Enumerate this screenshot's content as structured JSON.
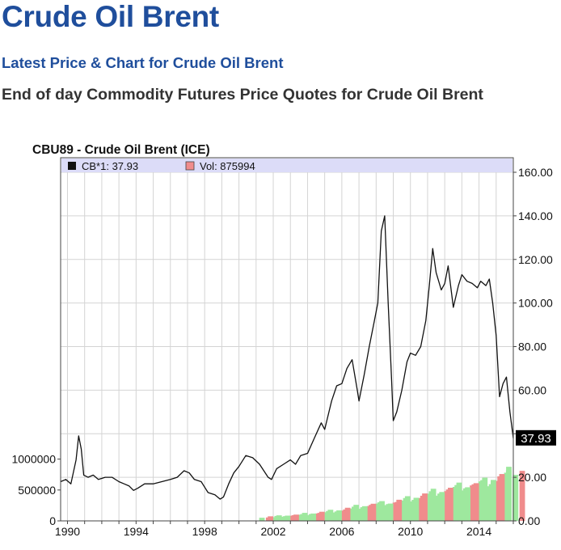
{
  "header": {
    "title": "Crude Oil Brent",
    "subtitle": "Latest Price & Chart for Crude Oil Brent",
    "description": "End of day Commodity Futures Price Quotes for Crude Oil Brent"
  },
  "chart_data": {
    "type": "line",
    "title": "CBU89 - Crude Oil Brent (ICE)",
    "legend": {
      "price_label": "CB*1: 37.93",
      "volume_label": "Vol: 875994",
      "placement": "top-left"
    },
    "last_price_label": "37.93",
    "price_axis": {
      "side": "right",
      "ticks": [
        "0.00",
        "20.00",
        "40.00",
        "60.00",
        "80.00",
        "100.00",
        "120.00",
        "140.00",
        "160.00"
      ],
      "ylim": [
        0,
        160
      ]
    },
    "volume_axis": {
      "side": "left",
      "ticks": [
        "0",
        "500000",
        "1000000"
      ],
      "ylim": [
        0,
        1100000
      ]
    },
    "x_axis": {
      "ticks": [
        "1990",
        "1994",
        "1998",
        "2002",
        "2006",
        "2010",
        "2014"
      ],
      "xlim": [
        1989.6,
        2016.0
      ]
    },
    "grid": true,
    "colors": {
      "price_line": "#111111",
      "volume_up": "#9ee89e",
      "volume_down": "#f08c8c",
      "legend_band": "#dcdcf8",
      "grid": "#d4d4d4"
    },
    "series": [
      {
        "name": "CB*1",
        "x": [
          1989.6,
          1989.9,
          1990.2,
          1990.5,
          1990.65,
          1990.8,
          1990.95,
          1991.2,
          1991.5,
          1991.8,
          1992.2,
          1992.6,
          1993.0,
          1993.3,
          1993.6,
          1993.85,
          1994.1,
          1994.5,
          1995.0,
          1995.5,
          1996.0,
          1996.4,
          1996.8,
          1997.1,
          1997.4,
          1997.8,
          1998.2,
          1998.6,
          1998.9,
          1999.1,
          1999.4,
          1999.7,
          2000.0,
          2000.4,
          2000.8,
          2001.2,
          2001.7,
          2001.9,
          2002.2,
          2002.6,
          2003.0,
          2003.3,
          2003.6,
          2004.0,
          2004.4,
          2004.8,
          2005.0,
          2005.4,
          2005.7,
          2006.0,
          2006.3,
          2006.6,
          2006.9,
          2007.0,
          2007.3,
          2007.6,
          2007.9,
          2008.1,
          2008.3,
          2008.5,
          2008.7,
          2008.9,
          2009.0,
          2009.2,
          2009.5,
          2009.8,
          2010.0,
          2010.3,
          2010.6,
          2010.9,
          2011.1,
          2011.3,
          2011.5,
          2011.8,
          2012.0,
          2012.2,
          2012.5,
          2012.8,
          2013.0,
          2013.3,
          2013.6,
          2013.9,
          2014.1,
          2014.4,
          2014.6,
          2014.8,
          2015.0,
          2015.2,
          2015.4,
          2015.6,
          2015.8,
          2016.0
        ],
        "values": [
          18,
          19,
          17,
          28,
          39,
          33,
          21,
          20,
          21,
          19,
          20,
          20,
          18,
          17,
          16,
          14,
          15,
          17,
          17,
          18,
          19,
          20,
          23,
          22,
          19,
          18,
          13,
          12,
          10,
          11,
          17,
          22,
          25,
          30,
          29,
          26,
          20,
          19,
          24,
          26,
          28,
          26,
          30,
          31,
          38,
          45,
          42,
          55,
          62,
          63,
          70,
          74,
          60,
          55,
          67,
          80,
          92,
          100,
          133,
          140,
          100,
          65,
          46,
          50,
          60,
          73,
          77,
          76,
          80,
          92,
          108,
          125,
          114,
          106,
          109,
          117,
          98,
          108,
          113,
          110,
          109,
          107,
          110,
          108,
          111,
          100,
          85,
          57,
          63,
          66,
          50,
          37.93
        ]
      },
      {
        "name": "Vol",
        "x": [
          2001.5,
          2002.0,
          2002.5,
          2003.0,
          2003.5,
          2004.0,
          2004.5,
          2005.0,
          2005.5,
          2006.0,
          2006.5,
          2007.0,
          2007.5,
          2008.0,
          2008.5,
          2009.0,
          2009.5,
          2010.0,
          2010.5,
          2011.0,
          2011.5,
          2012.0,
          2012.5,
          2013.0,
          2013.5,
          2014.0,
          2014.5,
          2015.0,
          2015.5,
          2015.9
        ],
        "values": [
          60000,
          80000,
          90000,
          100000,
          110000,
          130000,
          140000,
          160000,
          180000,
          200000,
          230000,
          260000,
          280000,
          300000,
          320000,
          330000,
          370000,
          400000,
          440000,
          480000,
          520000,
          550000,
          580000,
          620000,
          640000,
          660000,
          700000,
          780000,
          820000,
          875994
        ]
      }
    ]
  }
}
